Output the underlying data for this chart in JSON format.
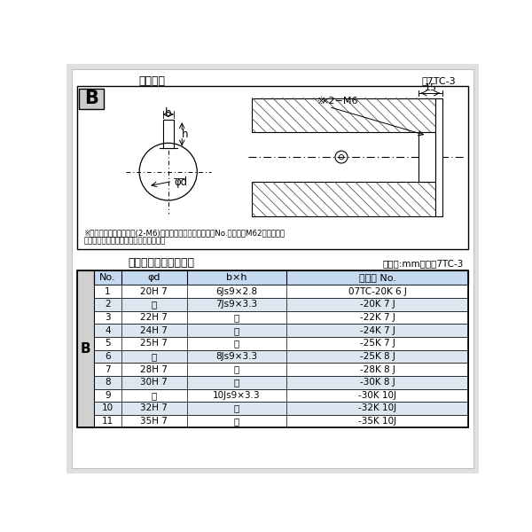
{
  "bg_color": "#ffffff",
  "outer_bg": "#e8e8e8",
  "diagram_title": "軸穴形状",
  "diagram_ref": "囷7TC-3",
  "table_title": "軸穴形状コード一覧表",
  "table_unit": "（単位:mm）　表7TC-3",
  "note_line1": "※セットボルト用タップ(2-M6)が必要な場合は右記コードNo.の末尾にM62を付ける。",
  "note_line2": "（セットボルトは付属されています。）",
  "col_headers": [
    "No.",
    "φd",
    "b×h",
    "コード No."
  ],
  "rows": [
    [
      "1",
      "20H 7",
      "6Js9×2.8",
      "07TC-20K 6 J"
    ],
    [
      "2",
      "「",
      "7Js9×3.3",
      "-20K 7 J"
    ],
    [
      "3",
      "22H 7",
      "「",
      "-22K 7 J"
    ],
    [
      "4",
      "24H 7",
      "「",
      "-24K 7 J"
    ],
    [
      "5",
      "25H 7",
      "「",
      "-25K 7 J"
    ],
    [
      "6",
      "「",
      "8Js9×3.3",
      "-25K 8 J"
    ],
    [
      "7",
      "28H 7",
      "「",
      "-28K 8 J"
    ],
    [
      "8",
      "30H 7",
      "「",
      "-30K 8 J"
    ],
    [
      "9",
      "「",
      "10Js9×3.3",
      "-30K 10J"
    ],
    [
      "10",
      "32H 7",
      "「",
      "-32K 10J"
    ],
    [
      "11",
      "35H 7",
      "「",
      "-35K 10J"
    ]
  ],
  "ditto": "「",
  "row_bg_even": "#dce6f1",
  "row_bg_odd": "#ffffff",
  "header_bg": "#c5d9f1",
  "left_label": "B",
  "left_col_bg": "#d0d0d0",
  "hatch_color": "#888888"
}
